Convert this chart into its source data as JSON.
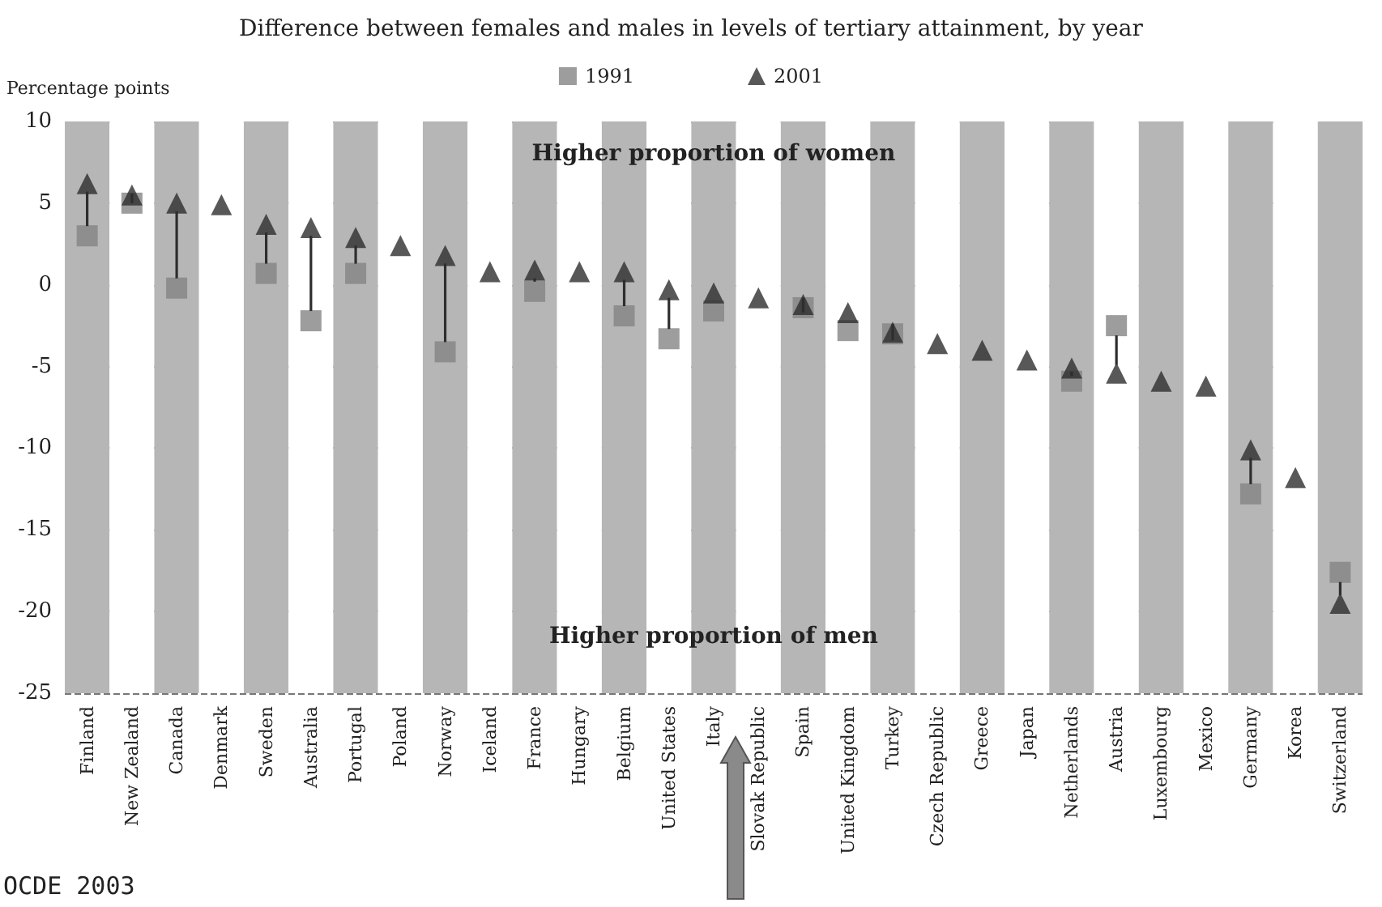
{
  "chart_data": {
    "type": "scatter",
    "title": "Difference between females and males in levels of tertiary attainment, by year",
    "ylabel": "Percentage points",
    "categories": [
      "Finland",
      "New Zealand",
      "Canada",
      "Denmark",
      "Sweden",
      "Australia",
      "Portugal",
      "Poland",
      "Norway",
      "Iceland",
      "France",
      "Hungary",
      "Belgium",
      "United States",
      "Italy",
      "Slovak Republic",
      "Spain",
      "United Kingdom",
      "Turkey",
      "Czech Republic",
      "Greece",
      "Japan",
      "Netherlands",
      "Austria",
      "Luxembourg",
      "Mexico",
      "Germany",
      "Korea",
      "Switzerland"
    ],
    "series": [
      {
        "name": "1991",
        "color": "#858585",
        "marker": "square",
        "values": [
          3.0,
          5.0,
          -0.2,
          null,
          0.7,
          -2.2,
          0.7,
          null,
          -4.1,
          null,
          -0.4,
          null,
          -1.9,
          -3.3,
          -1.6,
          null,
          -1.4,
          -2.8,
          -3.0,
          null,
          null,
          null,
          -5.9,
          -2.5,
          null,
          null,
          -12.8,
          null,
          -17.6
        ]
      },
      {
        "name": "2001",
        "color": "#2e2e2e",
        "marker": "triangle",
        "values": [
          6.2,
          5.5,
          5.0,
          4.9,
          3.7,
          3.5,
          2.9,
          2.4,
          1.8,
          0.8,
          0.9,
          0.8,
          0.8,
          -0.3,
          -0.5,
          -0.8,
          -1.2,
          -1.7,
          -2.9,
          -3.6,
          -4.0,
          -4.6,
          -5.1,
          -5.4,
          -5.9,
          -6.2,
          -10.1,
          -11.8,
          -19.5
        ]
      }
    ],
    "ylim": [
      -25,
      10
    ],
    "yticks": [
      -25,
      -20,
      -15,
      -10,
      -5,
      0,
      5,
      10
    ],
    "grid": "y",
    "legend": "top",
    "annotations": [
      "Higher proportion of women",
      "Higher proportion of men",
      "OCDE 2003"
    ]
  }
}
